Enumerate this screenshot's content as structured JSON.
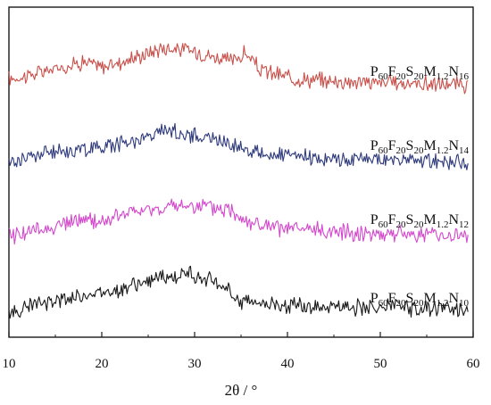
{
  "chart_data": {
    "type": "line",
    "xlabel": "2θ / °",
    "xlim": [
      10,
      60
    ],
    "x_ticks": [
      "10",
      "20",
      "30",
      "40",
      "50",
      "60"
    ],
    "y_ticks_labeled": false,
    "grid": false,
    "legend": "none (series labeled inline at right)",
    "series": [
      {
        "name": "P60F20S20M1.2N16",
        "label_parts": [
          "P",
          "60",
          "F",
          "20",
          "S",
          "20",
          "M",
          "1.2",
          "N",
          "16"
        ],
        "color": "#c9504a",
        "x": [
          10,
          12,
          14,
          16,
          18,
          20,
          22,
          24,
          26,
          27,
          28,
          30,
          32,
          34,
          35.5,
          37,
          40,
          43,
          46,
          49,
          52,
          55,
          58,
          59.5
        ],
        "y": [
          0.42,
          0.48,
          0.56,
          0.64,
          0.73,
          0.63,
          0.72,
          0.82,
          0.95,
          0.98,
          0.96,
          0.92,
          0.82,
          0.74,
          0.88,
          0.58,
          0.45,
          0.4,
          0.38,
          0.36,
          0.35,
          0.33,
          0.32,
          0.3
        ]
      },
      {
        "name": "P60F20S20M1.2N14",
        "label_parts": [
          "P",
          "60",
          "F",
          "20",
          "S",
          "20",
          "M",
          "1.2",
          "N",
          "14"
        ],
        "color": "#2f3b7c",
        "x": [
          10,
          12,
          14,
          16,
          18,
          20,
          22,
          24,
          26,
          26.5,
          28,
          30,
          32,
          34,
          36,
          38,
          41,
          44,
          47,
          50,
          53,
          56,
          58,
          59.5
        ],
        "y": [
          0.3,
          0.4,
          0.48,
          0.52,
          0.54,
          0.6,
          0.66,
          0.74,
          0.82,
          0.95,
          0.86,
          0.8,
          0.74,
          0.64,
          0.52,
          0.44,
          0.4,
          0.37,
          0.36,
          0.35,
          0.34,
          0.32,
          0.3,
          0.28
        ]
      },
      {
        "name": "P60F20S20M1.2N12",
        "label_parts": [
          "P",
          "60",
          "F",
          "20",
          "S",
          "20",
          "M",
          "1.2",
          "N",
          "12"
        ],
        "color": "#d348cc",
        "x": [
          10,
          12,
          14,
          16,
          18,
          20,
          22,
          24,
          26,
          28,
          30,
          32,
          34,
          36,
          38,
          41,
          44,
          47,
          50,
          53,
          56,
          58,
          59.5
        ],
        "y": [
          0.32,
          0.38,
          0.44,
          0.52,
          0.6,
          0.55,
          0.68,
          0.74,
          0.78,
          0.82,
          0.84,
          0.78,
          0.76,
          0.55,
          0.46,
          0.42,
          0.4,
          0.38,
          0.36,
          0.35,
          0.34,
          0.33,
          0.3
        ]
      },
      {
        "name": "P60F20S20M1.2N10",
        "label_parts": [
          "P",
          "60",
          "F",
          "20",
          "S",
          "20",
          "M",
          "1.2",
          "N",
          "10"
        ],
        "color": "#1a1a1a",
        "x": [
          10,
          12,
          14,
          16,
          18,
          20,
          22,
          24,
          26,
          28,
          29.5,
          31,
          33,
          34,
          35,
          37,
          40,
          43,
          46,
          49,
          52,
          55,
          58,
          59.5
        ],
        "y": [
          0.2,
          0.32,
          0.4,
          0.46,
          0.52,
          0.58,
          0.64,
          0.72,
          0.8,
          0.84,
          0.92,
          0.8,
          0.7,
          0.52,
          0.44,
          0.4,
          0.36,
          0.34,
          0.33,
          0.32,
          0.31,
          0.3,
          0.3,
          0.29
        ]
      }
    ]
  }
}
